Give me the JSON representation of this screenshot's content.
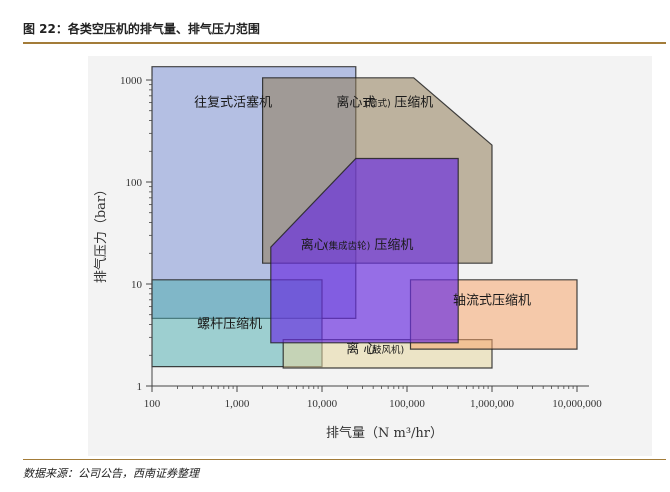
{
  "figure_title": "图 22：各类空压机的排气量、排气压力范围",
  "source_note": "数据来源：公司公告，西南证券整理",
  "chart_data": {
    "type": "area",
    "xlabel": "排气量（N m³/hr）",
    "ylabel": "排气压力（bar）",
    "x_scale": "log",
    "y_scale": "log",
    "xlim": [
      100,
      10000000
    ],
    "ylim": [
      1,
      1000
    ],
    "x_ticks": [
      100,
      1000,
      10000,
      100000,
      1000000,
      10000000
    ],
    "x_tick_labels": [
      "100",
      "1,000",
      "10,000",
      "100,000",
      "1,000,000",
      "10,000,000"
    ],
    "y_ticks": [
      1,
      10,
      100,
      1000
    ],
    "y_tick_labels": [
      "1",
      "10",
      "100",
      "1000"
    ],
    "grid": false,
    "series": [
      {
        "name": "往复式活塞机",
        "color": "#7f93d6",
        "points": [
          [
            100,
            4.6
          ],
          [
            100,
            1350
          ],
          [
            25000,
            1350
          ],
          [
            25000,
            4.6
          ]
        ]
      },
      {
        "name": "离心式(筒式)压缩机",
        "color": "#8f7c58",
        "points": [
          [
            2000,
            16
          ],
          [
            2000,
            1050
          ],
          [
            120000,
            1050
          ],
          [
            1000000,
            230
          ],
          [
            1000000,
            16
          ]
        ]
      },
      {
        "name": "螺杆压缩机",
        "color": "#55b0b3",
        "points": [
          [
            100,
            1.55
          ],
          [
            100,
            11
          ],
          [
            10000,
            11
          ],
          [
            10000,
            1.55
          ]
        ]
      },
      {
        "name": "离心(鼓风机)",
        "color": "#e6d7a0",
        "points": [
          [
            3500,
            1.5
          ],
          [
            3500,
            2.85
          ],
          [
            1000000,
            2.85
          ],
          [
            1000000,
            1.5
          ]
        ]
      },
      {
        "name": "轴流式压缩机",
        "color": "#f5a66e",
        "points": [
          [
            110000,
            2.3
          ],
          [
            110000,
            11
          ],
          [
            10000000,
            11
          ],
          [
            10000000,
            2.3
          ]
        ]
      },
      {
        "name": "离心(集成齿轮)压缩机",
        "color": "#6a2fe0",
        "points": [
          [
            2500,
            2.65
          ],
          [
            2500,
            23
          ],
          [
            25000,
            170
          ],
          [
            400000,
            170
          ],
          [
            400000,
            2.65
          ]
        ]
      }
    ],
    "annotations": [
      {
        "text": "往复式活塞机",
        "x": 900,
        "y": 550
      },
      {
        "text": "离心式",
        "x": 25000,
        "y": 550
      },
      {
        "text": "(筒式)",
        "x": 45000,
        "y": 550
      },
      {
        "text": "压缩机",
        "x": 120000,
        "y": 550
      },
      {
        "text": "离心",
        "x": 8000,
        "y": 22
      },
      {
        "text": "(集成齿轮)",
        "x": 20000,
        "y": 22
      },
      {
        "text": "压缩机",
        "x": 70000,
        "y": 22
      },
      {
        "text": "轴流式压缩机",
        "x": 1000000,
        "y": 6.3
      },
      {
        "text": "螺杆压缩机",
        "x": 820,
        "y": 3.7
      },
      {
        "text": "离 心",
        "x": 29000,
        "y": 2.1
      },
      {
        "text": "(鼓风机)",
        "x": 57000,
        "y": 2.1
      }
    ]
  }
}
